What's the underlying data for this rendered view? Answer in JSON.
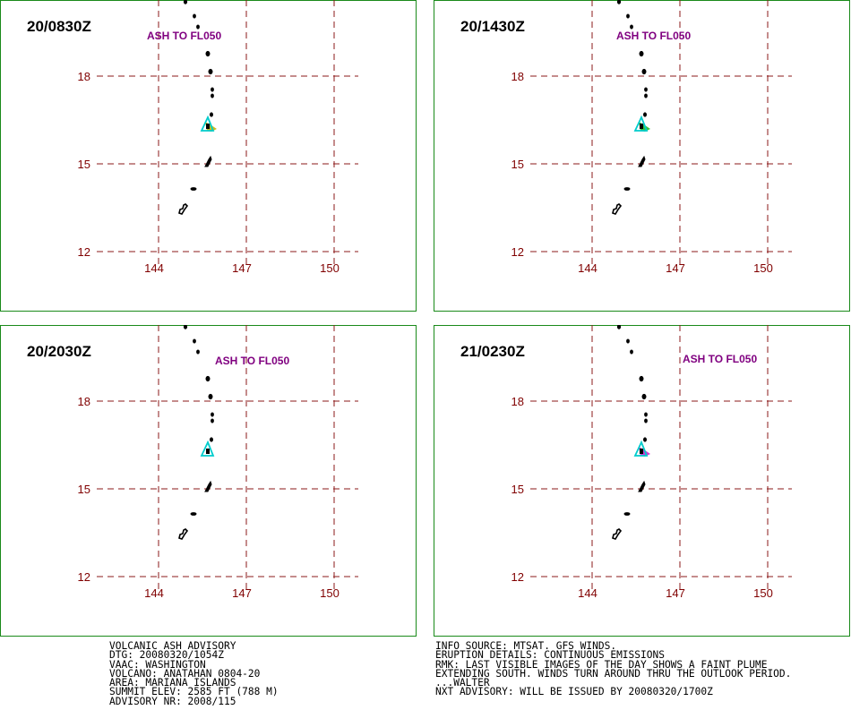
{
  "panels": [
    {
      "time": "20/0830Z",
      "ash_label": "ASH TO FL050",
      "plume_color": "#c8b400"
    },
    {
      "time": "20/1430Z",
      "ash_label": "ASH TO FL050",
      "plume_color": "#22bb22"
    },
    {
      "time": "20/2030Z",
      "ash_label": "ASH TO FL050",
      "plume_color": null
    },
    {
      "time": "21/0230Z",
      "ash_label": "ASH TO FL050",
      "plume_color": "#cc22cc"
    }
  ],
  "lat_labels": [
    "18",
    "15",
    "12"
  ],
  "lon_labels": [
    "144",
    "147",
    "150"
  ],
  "colors": {
    "border": "#1a8a1a",
    "grid": "#8b1a1a",
    "labels": "#800000",
    "ash_text": "#800080",
    "volcano_marker": "#00cccc",
    "land": "#000000"
  },
  "volcano_marker_icon": "triangle",
  "footer_left": [
    "VOLCANIC ASH ADVISORY",
    "DTG: 20080320/1054Z",
    "VAAC: WASHINGTON",
    "VOLCANO: ANATAHAN 0804-20",
    "AREA: MARIANA ISLANDS",
    "SUMMIT ELEV: 2585 FT (788 M)",
    "ADVISORY NR: 2008/115"
  ],
  "footer_right": [
    "INFO SOURCE: MTSAT. GFS WINDS.",
    "ERUPTION DETAILS: CONTINUOUS EMISSIONS",
    "RMK: LAST VISIBLE IMAGES OF THE DAY SHOWS A FAINT PLUME",
    "EXTENDING SOUTH. WINDS TURN AROUND THRU THE OUTLOOK PERIOD.",
    "...WALTER",
    "NXT ADVISORY: WILL BE ISSUED BY 20080320/1700Z"
  ]
}
